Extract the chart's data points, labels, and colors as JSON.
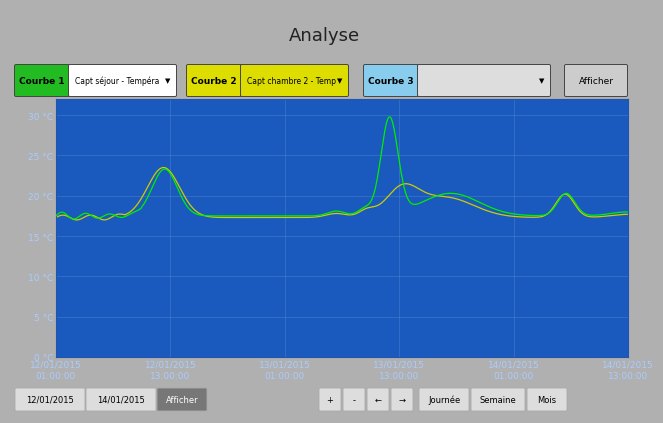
{
  "title": "Analyse",
  "bg_color": "#b0b0b0",
  "plot_bg_color": "#1a5abf",
  "grid_color": "#4a7fd4",
  "title_color": "#222222",
  "y_ticks": [
    0,
    5,
    10,
    15,
    20,
    25,
    30
  ],
  "y_labels": [
    "0 °C",
    "5 °C",
    "10 °C",
    "15 °C",
    "20 °C",
    "25 °C",
    "30 °C"
  ],
  "ylim": [
    0,
    32
  ],
  "x_tick_labels": [
    "12/01/2015\n01:00:00",
    "12/01/2015\n13:00:00",
    "13/01/2015\n01:00:00",
    "13/01/2015\n13:00:00",
    "14/01/2015\n01:00:00",
    "14/01/2015\n13:00:00"
  ],
  "courbe1_label": "Courbe 1",
  "courbe1_text": "Capt séjour - Tempéra",
  "courbe1_bg": "#22bb22",
  "courbe2_label": "Courbe 2",
  "courbe2_text": "Capt chambre 2 - Temp",
  "courbe2_bg": "#dddd00",
  "courbe3_label": "Courbe 3",
  "courbe3_bg": "#88ccee",
  "afficher_label": "Afficher",
  "tick_color": "#aaccff",
  "tick_fontsize": 6.5,
  "line1_color": "#00ee00",
  "line2_color": "#cccc00",
  "bottom_btn_labels_left": [
    "12/01/2015",
    "14/01/2015",
    "Afficher"
  ],
  "bottom_btn_labels_right": [
    "+",
    "-",
    "←",
    "→",
    "Journée",
    "Semaine",
    "Mois"
  ]
}
